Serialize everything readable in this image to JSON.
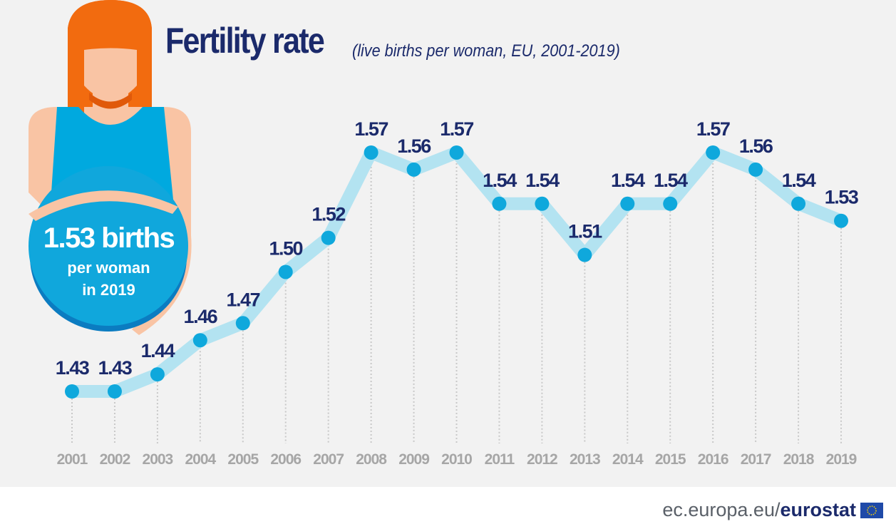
{
  "title": "Fertility rate",
  "subtitle": "(live births per woman, EU, 2001-2019)",
  "highlight": {
    "value": "1.53 births",
    "line1": "per woman",
    "line2": "in 2019"
  },
  "footer": {
    "domain": "ec.europa.eu/",
    "brand": "eurostat"
  },
  "colors": {
    "title": "#1b2a6b",
    "line": "#b3e3f1",
    "points": "#0fa8dc",
    "axis_labels": "#a6a6a6",
    "hair": "#f26b0f",
    "skin": "#f9c4a4",
    "body": "#00a9df"
  },
  "chart_data": {
    "type": "line",
    "title": "Fertility rate",
    "subtitle": "(live births per woman, EU, 2001-2019)",
    "categories": [
      "2001",
      "2002",
      "2003",
      "2004",
      "2005",
      "2006",
      "2007",
      "2008",
      "2009",
      "2010",
      "2011",
      "2012",
      "2013",
      "2014",
      "2015",
      "2016",
      "2017",
      "2018",
      "2019"
    ],
    "values": [
      1.43,
      1.43,
      1.44,
      1.46,
      1.47,
      1.5,
      1.52,
      1.57,
      1.56,
      1.57,
      1.54,
      1.54,
      1.51,
      1.54,
      1.54,
      1.57,
      1.56,
      1.54,
      1.53
    ],
    "data_labels": true,
    "grid": false,
    "xlabel": "",
    "ylabel": ""
  }
}
